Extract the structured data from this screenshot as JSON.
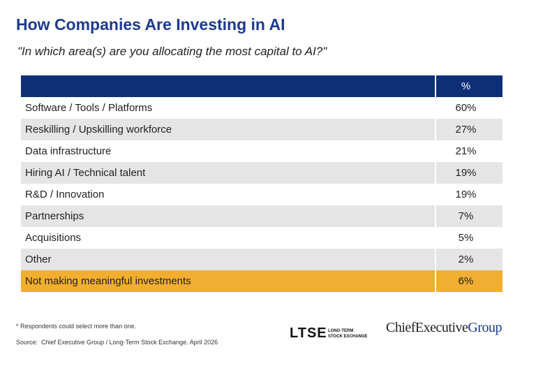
{
  "header": {
    "title": "How Companies Are Investing in AI",
    "subtitle": "\"In which area(s) are you allocating the most capital to AI?\""
  },
  "table": {
    "value_header": "%",
    "highlight_row": 8,
    "rows": [
      [
        "Software / Tools / Platforms",
        "60%"
      ],
      [
        "Reskilling / Upskilling workforce",
        "27%"
      ],
      [
        "Data infrastructure",
        "21%"
      ],
      [
        "Hiring AI / Technical talent",
        "19%"
      ],
      [
        "R&D / Innovation",
        "19%"
      ],
      [
        "Partnerships",
        "7%"
      ],
      [
        "Acquisitions",
        "5%"
      ],
      [
        "Other",
        "2%"
      ],
      [
        "Not making meaningful investments",
        "6%"
      ]
    ]
  },
  "footer": {
    "note": "* Respondents could select more than one.",
    "source_label": "Source:",
    "source": "Chief Executive Group  / Long-Term Stock Exchange. April 2026"
  },
  "logos": {
    "ltse": "LTSE",
    "ltse_sub_1": "LONG-TERM",
    "ltse_sub_2": "STOCK EXCHANGE",
    "ceg_main": "ChiefExecutive",
    "ceg_group": "Group"
  }
}
